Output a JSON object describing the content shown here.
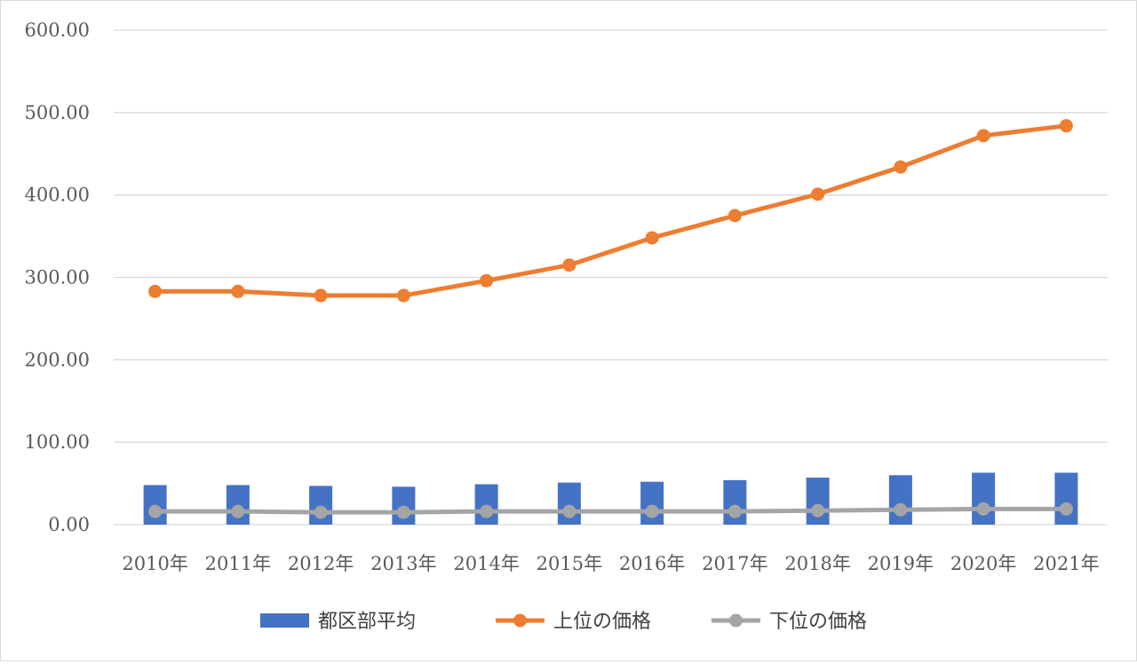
{
  "chart_data": {
    "type": "bar",
    "categories": [
      "2010年",
      "2011年",
      "2012年",
      "2013年",
      "2014年",
      "2015年",
      "2016年",
      "2017年",
      "2018年",
      "2019年",
      "2020年",
      "2021年"
    ],
    "series": [
      {
        "name": "都区部平均",
        "type": "bar",
        "color": "#4472C4",
        "values": [
          48,
          48,
          47,
          46,
          49,
          51,
          52,
          54,
          57,
          60,
          63,
          63
        ]
      },
      {
        "name": "上位の価格",
        "type": "line",
        "color": "#ED7D31",
        "values": [
          283,
          283,
          278,
          278,
          296,
          315,
          348,
          375,
          401,
          434,
          472,
          484
        ]
      },
      {
        "name": "下位の価格",
        "type": "line",
        "color": "#A5A5A5",
        "values": [
          16,
          16,
          15,
          15,
          16,
          16,
          16,
          16,
          17,
          18,
          19,
          19
        ]
      }
    ],
    "ylim": [
      0,
      600
    ],
    "yticks": [
      "0.00",
      "100.00",
      "200.00",
      "300.00",
      "400.00",
      "500.00",
      "600.00"
    ],
    "grid": true,
    "legend_position": "bottom",
    "title": "",
    "xlabel": "",
    "ylabel": ""
  }
}
